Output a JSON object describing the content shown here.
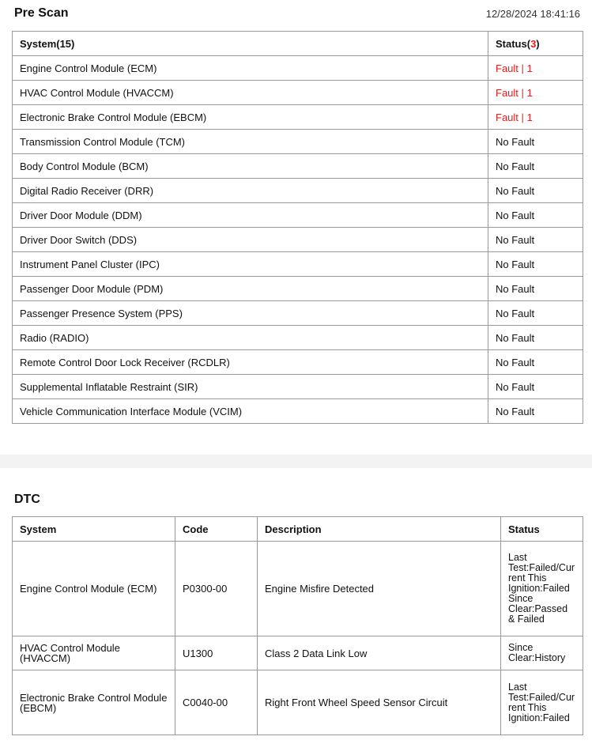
{
  "prescan": {
    "title": "Pre Scan",
    "timestamp": "12/28/2024 18:41:16",
    "header": {
      "system_label": "System",
      "system_count": "(15)",
      "status_label": "Status(",
      "status_count": "3",
      "status_close": ")"
    },
    "rows": [
      {
        "system": "Engine Control Module (ECM)",
        "status": "Fault | 1",
        "fault": true
      },
      {
        "system": "HVAC Control Module (HVACCM)",
        "status": "Fault | 1",
        "fault": true
      },
      {
        "system": "Electronic Brake Control Module (EBCM)",
        "status": "Fault | 1",
        "fault": true
      },
      {
        "system": "Transmission Control Module (TCM)",
        "status": "No Fault",
        "fault": false
      },
      {
        "system": "Body Control Module (BCM)",
        "status": "No Fault",
        "fault": false
      },
      {
        "system": "Digital Radio Receiver (DRR)",
        "status": "No Fault",
        "fault": false
      },
      {
        "system": "Driver Door Module (DDM)",
        "status": "No Fault",
        "fault": false
      },
      {
        "system": "Driver Door Switch (DDS)",
        "status": "No Fault",
        "fault": false
      },
      {
        "system": "Instrument Panel Cluster (IPC)",
        "status": "No Fault",
        "fault": false
      },
      {
        "system": "Passenger Door Module (PDM)",
        "status": "No Fault",
        "fault": false
      },
      {
        "system": "Passenger Presence System (PPS)",
        "status": "No Fault",
        "fault": false
      },
      {
        "system": "Radio (RADIO)",
        "status": "No Fault",
        "fault": false
      },
      {
        "system": "Remote Control Door Lock Receiver (RCDLR)",
        "status": "No Fault",
        "fault": false
      },
      {
        "system": "Supplemental Inflatable Restraint (SIR)",
        "status": "No Fault",
        "fault": false
      },
      {
        "system": "Vehicle Communication Interface Module (VCIM)",
        "status": "No Fault",
        "fault": false
      }
    ]
  },
  "dtc": {
    "title": "DTC",
    "headers": [
      "System",
      "Code",
      "Description",
      "Status"
    ],
    "rows": [
      {
        "system": "Engine Control Module (ECM)",
        "code": "P0300-00",
        "description": "Engine Misfire Detected",
        "status": "Last Test:Failed/Current This Ignition:Failed Since Clear:Passed & Failed"
      },
      {
        "system": "HVAC Control Module (HVACCM)",
        "code": "U1300",
        "description": "Class 2 Data Link Low",
        "status": "Since Clear:History"
      },
      {
        "system": "Electronic Brake Control Module (EBCM)",
        "code": "C0040-00",
        "description": "Right Front Wheel Speed Sensor Circuit",
        "status": "Last Test:Failed/Current This Ignition:Failed"
      }
    ]
  },
  "colors": {
    "fault": "#e81c1c",
    "band": "#f3f3f3",
    "border": "#999999"
  }
}
